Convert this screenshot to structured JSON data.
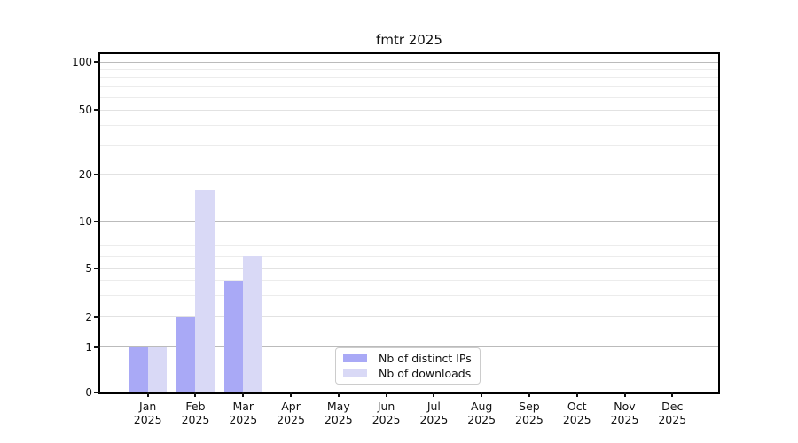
{
  "chart_data": {
    "type": "bar",
    "title": "fmtr 2025",
    "year_label": "2025",
    "months": [
      "Jan",
      "Feb",
      "Mar",
      "Apr",
      "May",
      "Jun",
      "Jul",
      "Aug",
      "Sep",
      "Oct",
      "Nov",
      "Dec"
    ],
    "categories": [
      "Jan 2025",
      "Feb 2025",
      "Mar 2025",
      "Apr 2025",
      "May 2025",
      "Jun 2025",
      "Jul 2025",
      "Aug 2025",
      "Sep 2025",
      "Oct 2025",
      "Nov 2025",
      "Dec 2025"
    ],
    "series": [
      {
        "name": "Nb of distinct IPs",
        "color": "#a9a9f6",
        "values": [
          1,
          2,
          4,
          0,
          0,
          0,
          0,
          0,
          0,
          0,
          0,
          0
        ]
      },
      {
        "name": "Nb of downloads",
        "color": "#d9d9f6",
        "values": [
          1,
          16,
          6,
          0,
          0,
          0,
          0,
          0,
          0,
          0,
          0,
          0
        ]
      }
    ],
    "yticks": [
      100,
      50,
      20,
      10,
      5,
      2,
      1,
      0
    ],
    "yscale": "log-like",
    "ylim": [
      0,
      111
    ],
    "grid": true,
    "legend_position": "inside-bottom-center",
    "xlabel": "",
    "ylabel": ""
  },
  "colors": {
    "axis": "#000000",
    "grid_decade": "#bbbbbb",
    "grid_labeled": "#e2e2e2",
    "grid_minor": "#ececec",
    "text": "#111111",
    "legend_border": "#cccccc"
  }
}
